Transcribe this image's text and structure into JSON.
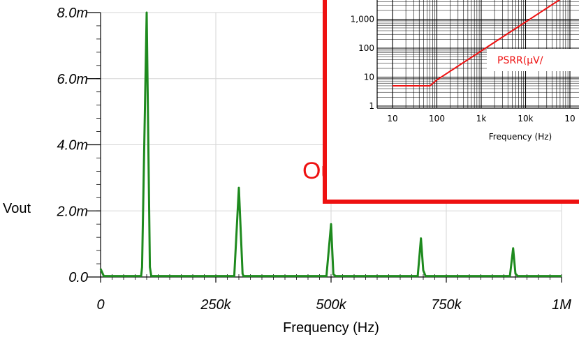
{
  "chart_data": [
    {
      "type": "line",
      "title": "",
      "xlabel": "Frequency (Hz)",
      "ylabel": "Vout",
      "xlim": [
        0,
        1000000
      ],
      "ylim": [
        0,
        0.008
      ],
      "x_tick_labels": [
        "0",
        "250k",
        "500k",
        "750k",
        "1M"
      ],
      "y_tick_labels": [
        "0.0",
        "2.0m",
        "4.0m",
        "6.0m",
        "8.0m"
      ],
      "grid": true,
      "color": "#1e8a1e",
      "annotation": "Output",
      "series": [
        {
          "x": [
            0,
            7000,
            12000,
            88000,
            90000,
            100000,
            107000,
            110000,
            290000,
            300000,
            308000,
            310000,
            490000,
            500000,
            505000,
            510000,
            688000,
            695000,
            700000,
            705000,
            888000,
            895000,
            900000,
            905000,
            1000000
          ],
          "y": [
            0.00025,
            3e-05,
            3e-05,
            3e-05,
            0.0003,
            0.008,
            0.0003,
            3e-05,
            3e-05,
            0.0027,
            0.0001,
            3e-05,
            3e-05,
            0.0016,
            8e-05,
            3e-05,
            3e-05,
            0.00117,
            0.0002,
            3e-05,
            3e-05,
            0.00087,
            0.0001,
            3e-05,
            3e-05
          ]
        }
      ]
    },
    {
      "type": "line",
      "title": "",
      "xlabel": "Frequency (Hz)",
      "ylabel": "",
      "xscale": "log",
      "yscale": "log",
      "x_tick_labels": [
        "10",
        "100",
        "1k",
        "10k",
        "10"
      ],
      "y_tick_labels": [
        "1",
        "10",
        "100",
        "1,000"
      ],
      "grid": true,
      "color": "#ee1111",
      "series": [
        {
          "name": "PSRR(µV/",
          "x": [
            10,
            70,
            100,
            1000,
            10000,
            100000
          ],
          "y": [
            5,
            5,
            8,
            80,
            800,
            8000
          ]
        }
      ]
    }
  ]
}
